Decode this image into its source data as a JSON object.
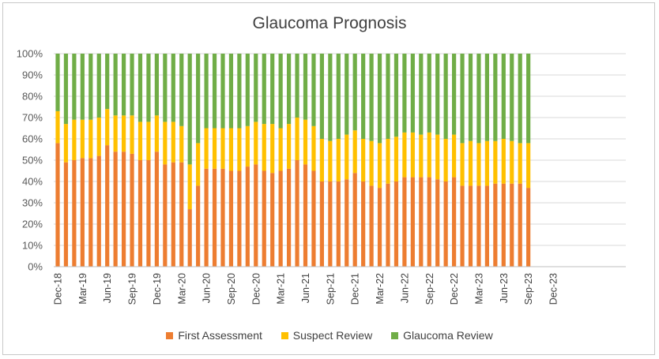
{
  "chart_data": {
    "type": "bar",
    "stacked": true,
    "title": "Glaucoma Prognosis",
    "ylim": [
      0,
      100
    ],
    "y_ticks": [
      "0%",
      "10%",
      "20%",
      "30%",
      "40%",
      "50%",
      "60%",
      "70%",
      "80%",
      "90%",
      "100%"
    ],
    "grid": "horizontal",
    "legend_position": "bottom",
    "x_tick_labels": [
      "Dec-18",
      "Mar-19",
      "Jun-19",
      "Sep-19",
      "Dec-19",
      "Mar-20",
      "Jun-20",
      "Sep-20",
      "Dec-20",
      "Mar-21",
      "Jun-21",
      "Sep-21",
      "Dec-21",
      "Mar-22",
      "Jun-22",
      "Sep-22",
      "Dec-22",
      "Mar-23",
      "Jun-23",
      "Sep-23",
      "Dec-23"
    ],
    "categories": [
      "Dec-18",
      "Jan-19",
      "Feb-19",
      "Mar-19",
      "Apr-19",
      "May-19",
      "Jun-19",
      "Jul-19",
      "Aug-19",
      "Sep-19",
      "Oct-19",
      "Nov-19",
      "Dec-19",
      "Jan-20",
      "Feb-20",
      "Mar-20",
      "Apr-20",
      "May-20",
      "Jun-20",
      "Jul-20",
      "Aug-20",
      "Sep-20",
      "Oct-20",
      "Nov-20",
      "Dec-20",
      "Jan-21",
      "Feb-21",
      "Mar-21",
      "Apr-21",
      "May-21",
      "Jun-21",
      "Jul-21",
      "Aug-21",
      "Sep-21",
      "Oct-21",
      "Nov-21",
      "Dec-21",
      "Jan-22",
      "Feb-22",
      "Mar-22",
      "Apr-22",
      "May-22",
      "Jun-22",
      "Jul-22",
      "Aug-22",
      "Sep-22",
      "Oct-22",
      "Nov-22",
      "Dec-22",
      "Jan-23",
      "Feb-23",
      "Mar-23",
      "Apr-23",
      "May-23",
      "Jun-23",
      "Jul-23",
      "Aug-23",
      "Sep-23"
    ],
    "series": [
      {
        "name": "First Assessment",
        "color": "#ED7D31",
        "values": [
          58,
          49,
          50,
          51,
          51,
          52,
          57,
          54,
          54,
          53,
          50,
          50,
          54,
          48,
          49,
          49,
          27,
          38,
          46,
          46,
          46,
          45,
          45,
          47,
          48,
          45,
          44,
          45,
          46,
          50,
          48,
          45,
          40,
          40,
          40,
          41,
          44,
          40,
          38,
          37,
          39,
          40,
          42,
          42,
          42,
          42,
          41,
          40,
          42,
          38,
          38,
          38,
          38,
          39,
          39,
          39,
          39,
          37
        ]
      },
      {
        "name": "Suspect Review",
        "color": "#FFC000",
        "values": [
          15,
          18,
          19,
          18,
          18,
          18,
          17,
          17,
          17,
          18,
          18,
          18,
          17,
          20,
          19,
          17,
          21,
          20,
          19,
          19,
          19,
          20,
          20,
          19,
          20,
          22,
          23,
          20,
          21,
          20,
          21,
          21,
          20,
          19,
          20,
          21,
          20,
          20,
          21,
          21,
          21,
          21,
          21,
          21,
          20,
          21,
          21,
          20,
          20,
          20,
          21,
          20,
          21,
          20,
          21,
          20,
          19,
          21
        ]
      },
      {
        "name": "Glaucoma Review",
        "color": "#70AD47",
        "values": [
          27,
          33,
          31,
          31,
          31,
          30,
          26,
          29,
          29,
          29,
          32,
          32,
          29,
          32,
          32,
          34,
          52,
          42,
          35,
          35,
          35,
          35,
          35,
          34,
          32,
          33,
          33,
          35,
          33,
          30,
          31,
          34,
          40,
          41,
          40,
          38,
          36,
          40,
          41,
          42,
          40,
          39,
          37,
          37,
          38,
          37,
          38,
          40,
          38,
          42,
          41,
          42,
          41,
          41,
          40,
          41,
          42,
          42
        ]
      }
    ]
  }
}
